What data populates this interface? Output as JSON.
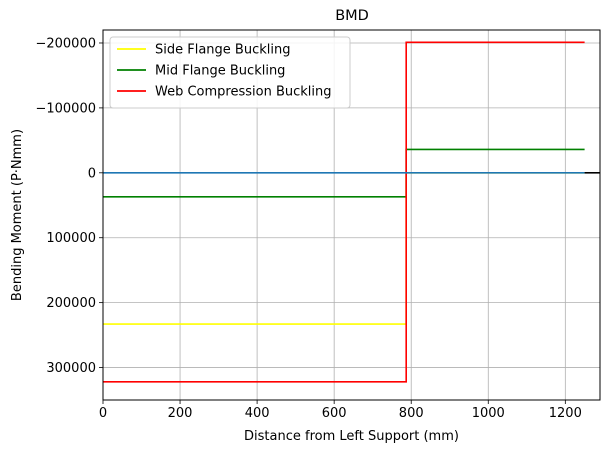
{
  "chart_data": {
    "type": "line",
    "title": "BMD",
    "xlabel": "Distance from Left Support (mm)",
    "ylabel": "Bending Moment (P·Nmm)",
    "xlim": [
      0,
      1290
    ],
    "ylim": [
      -220000,
      350000
    ],
    "y_inverted": true,
    "grid": true,
    "legend_position": "top-left",
    "x_ticks": [
      0,
      200,
      400,
      600,
      800,
      1000,
      1200
    ],
    "y_ticks": [
      -200000,
      -100000,
      0,
      100000,
      200000,
      300000
    ],
    "x_tick_labels": [
      "0",
      "200",
      "400",
      "600",
      "800",
      "1000",
      "1200"
    ],
    "y_tick_labels": [
      "−200000",
      "−100000",
      "0",
      "100000",
      "200000",
      "300000"
    ],
    "series": [
      {
        "name": "Side Flange Buckling",
        "color": "#ffff00",
        "in_legend": true,
        "x": [
          0,
          787,
          787,
          1250
        ],
        "y": [
          233000,
          233000,
          0,
          0
        ]
      },
      {
        "name": "Mid Flange Buckling",
        "color": "#008000",
        "in_legend": true,
        "x": [
          0,
          787,
          787,
          1250
        ],
        "y": [
          37000,
          37000,
          -36000,
          -36000
        ]
      },
      {
        "name": "Web Compression Buckling",
        "color": "#ff0000",
        "in_legend": true,
        "x": [
          0,
          787,
          787,
          1250
        ],
        "y": [
          322000,
          322000,
          -201000,
          -201000
        ]
      },
      {
        "color": "#1f77b4",
        "in_legend": false,
        "x": [
          0,
          1250
        ],
        "y": [
          0,
          0
        ]
      },
      {
        "color": "#000000",
        "in_legend": false,
        "x": [
          1250,
          1290
        ],
        "y": [
          0,
          0
        ]
      }
    ]
  }
}
